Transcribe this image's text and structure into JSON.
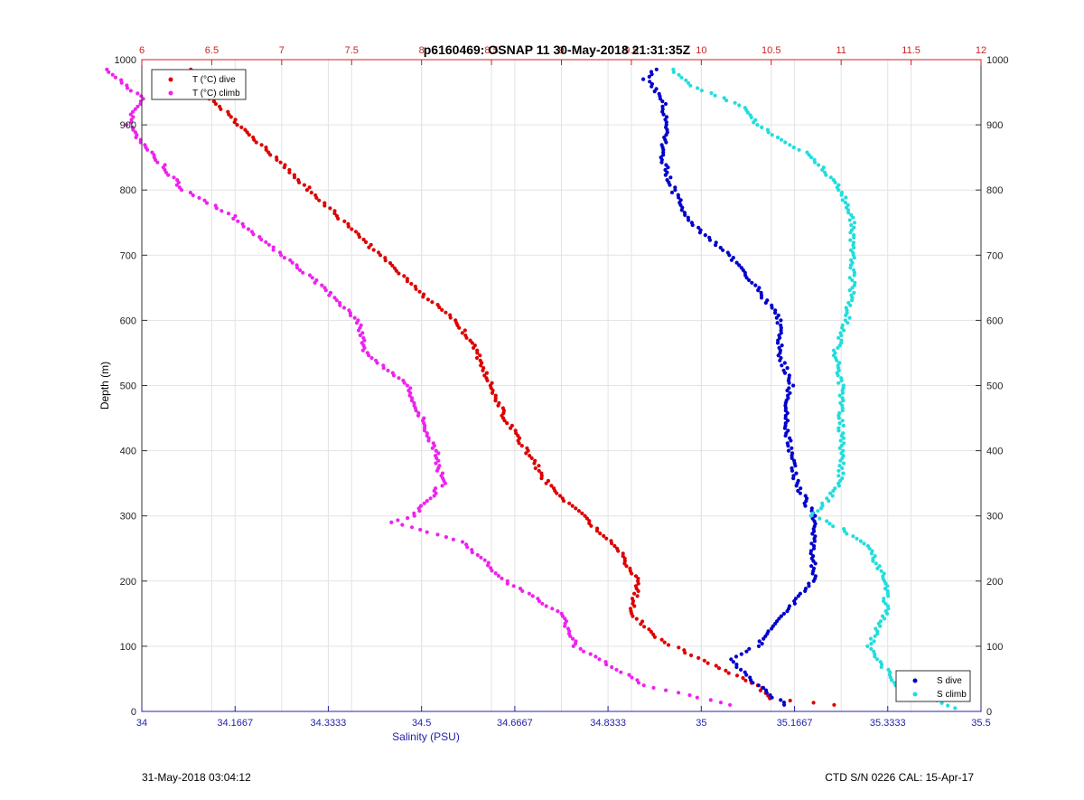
{
  "chart_data": {
    "type": "scatter",
    "title": "p6160469: OSNAP 11 30-May-2018 21:31:35Z",
    "ylabel": "Depth (m)",
    "xlabel_bottom": "Salinity (PSU)",
    "ylim": [
      1000,
      0
    ],
    "yticks": [
      0,
      100,
      200,
      300,
      400,
      500,
      600,
      700,
      800,
      900,
      1000
    ],
    "xlim_top": [
      6,
      12
    ],
    "xticks_top": [
      "6",
      "6.5",
      "7",
      "7.5",
      "8",
      "8.5",
      "9",
      "9.5",
      "10",
      "10.5",
      "11",
      "11.5",
      "12"
    ],
    "xlim_bottom": [
      34,
      35.5
    ],
    "xticks_bottom": [
      "34",
      "34.1667",
      "34.3333",
      "34.5",
      "34.6667",
      "34.8333",
      "35",
      "35.1667",
      "35.3333",
      "35.5"
    ],
    "grid": true,
    "legend_top": {
      "placement": "top-left",
      "entries": [
        "T (°C) dive",
        "T (°C) climb"
      ]
    },
    "legend_bottom": {
      "placement": "bottom-right",
      "entries": [
        "S dive",
        "S climb"
      ]
    },
    "series": [
      {
        "name": "T (°C) dive",
        "axis": "top",
        "color": "#dd0000",
        "points": [
          [
            10.95,
            10
          ],
          [
            10.5,
            20
          ],
          [
            10.4,
            40
          ],
          [
            10.1,
            70
          ],
          [
            9.7,
            110
          ],
          [
            9.5,
            150
          ],
          [
            9.55,
            200
          ],
          [
            9.4,
            250
          ],
          [
            9.15,
            300
          ],
          [
            8.9,
            350
          ],
          [
            8.75,
            400
          ],
          [
            8.6,
            450
          ],
          [
            8.5,
            500
          ],
          [
            8.4,
            550
          ],
          [
            8.25,
            600
          ],
          [
            8.0,
            640
          ],
          [
            7.7,
            700
          ],
          [
            7.4,
            760
          ],
          [
            7.2,
            800
          ],
          [
            6.95,
            850
          ],
          [
            6.7,
            900
          ],
          [
            6.5,
            940
          ],
          [
            6.4,
            970
          ],
          [
            6.35,
            985
          ]
        ]
      },
      {
        "name": "T (°C) climb",
        "axis": "top",
        "color": "#ee22ee",
        "points": [
          [
            10.2,
            10
          ],
          [
            9.6,
            40
          ],
          [
            9.1,
            100
          ],
          [
            9.0,
            150
          ],
          [
            8.6,
            200
          ],
          [
            8.3,
            260
          ],
          [
            7.8,
            290
          ],
          [
            7.95,
            300
          ],
          [
            8.15,
            350
          ],
          [
            8.1,
            400
          ],
          [
            8.0,
            450
          ],
          [
            7.9,
            500
          ],
          [
            7.6,
            550
          ],
          [
            7.55,
            600
          ],
          [
            7.3,
            650
          ],
          [
            7.0,
            700
          ],
          [
            6.65,
            760
          ],
          [
            6.3,
            800
          ],
          [
            6.1,
            850
          ],
          [
            5.9,
            900
          ],
          [
            6.0,
            940
          ],
          [
            5.75,
            985
          ]
        ]
      },
      {
        "name": "S dive",
        "axis": "bottom",
        "color": "#0000cc",
        "points": [
          [
            35.15,
            10
          ],
          [
            35.1,
            40
          ],
          [
            35.05,
            80
          ],
          [
            35.1,
            100
          ],
          [
            35.15,
            150
          ],
          [
            35.2,
            200
          ],
          [
            35.2,
            250
          ],
          [
            35.2,
            280
          ],
          [
            35.2,
            300
          ],
          [
            35.17,
            350
          ],
          [
            35.16,
            400
          ],
          [
            35.15,
            450
          ],
          [
            35.16,
            500
          ],
          [
            35.14,
            550
          ],
          [
            35.14,
            600
          ],
          [
            35.1,
            650
          ],
          [
            35.05,
            700
          ],
          [
            34.98,
            750
          ],
          [
            34.95,
            800
          ],
          [
            34.93,
            850
          ],
          [
            34.94,
            900
          ],
          [
            34.93,
            940
          ],
          [
            34.9,
            970
          ],
          [
            34.92,
            985
          ]
        ]
      },
      {
        "name": "S climb",
        "axis": "bottom",
        "color": "#22dddd",
        "points": [
          [
            35.45,
            5
          ],
          [
            35.35,
            40
          ],
          [
            35.3,
            100
          ],
          [
            35.33,
            150
          ],
          [
            35.33,
            200
          ],
          [
            35.3,
            250
          ],
          [
            35.25,
            280
          ],
          [
            35.2,
            300
          ],
          [
            35.25,
            350
          ],
          [
            35.25,
            400
          ],
          [
            35.25,
            450
          ],
          [
            35.25,
            500
          ],
          [
            35.24,
            550
          ],
          [
            35.26,
            600
          ],
          [
            35.27,
            650
          ],
          [
            35.27,
            700
          ],
          [
            35.27,
            750
          ],
          [
            35.25,
            800
          ],
          [
            35.2,
            850
          ],
          [
            35.1,
            900
          ],
          [
            35.07,
            930
          ],
          [
            34.98,
            960
          ],
          [
            34.95,
            985
          ]
        ]
      }
    ]
  },
  "footer": {
    "left": "31-May-2018 03:04:12",
    "right": "CTD S/N 0226  CAL: 15-Apr-17"
  },
  "colors": {
    "top_axis": "#cc2222",
    "bottom_axis": "#2222aa",
    "grid": "#e3e3e3"
  }
}
